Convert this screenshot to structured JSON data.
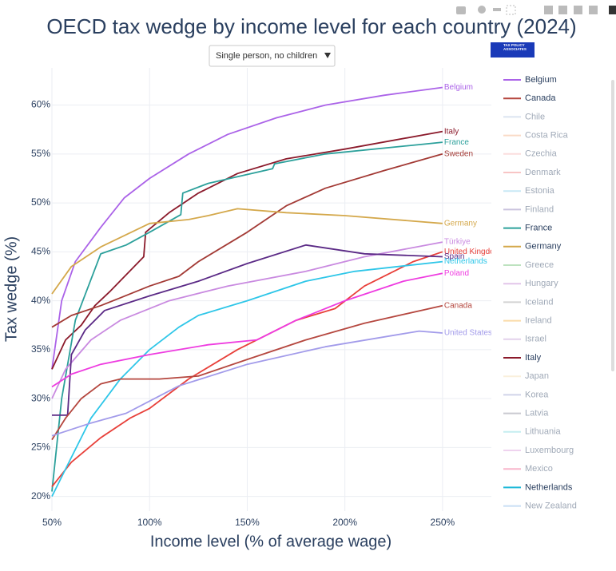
{
  "chart_data": {
    "type": "line",
    "title": "OECD tax wedge by income level for each country (2024)",
    "dropdown": "Single person, no children",
    "logo_text": "TAX POLICY ASSOCIATES",
    "x_label": "Income level (% of average wage)",
    "y_label": "Tax wedge (%)",
    "xlim": [
      50,
      275
    ],
    "ylim": [
      18.5,
      63.8
    ],
    "grid": true,
    "xticks": [
      {
        "value": 50,
        "label": "50%"
      },
      {
        "value": 100,
        "label": "100%"
      },
      {
        "value": 150,
        "label": "150%"
      },
      {
        "value": 200,
        "label": "200%"
      },
      {
        "value": 250,
        "label": "250%"
      }
    ],
    "yticks": [
      {
        "value": 20,
        "label": "20%"
      },
      {
        "value": 25,
        "label": "25%"
      },
      {
        "value": 30,
        "label": "30%"
      },
      {
        "value": 35,
        "label": "35%"
      },
      {
        "value": 40,
        "label": "40%"
      },
      {
        "value": 45,
        "label": "45%"
      },
      {
        "value": 50,
        "label": "50%"
      },
      {
        "value": 55,
        "label": "55%"
      },
      {
        "value": 60,
        "label": "60%"
      }
    ],
    "series": [
      {
        "name": "Belgium",
        "color": "#ab63e8",
        "x": [
          50,
          55,
          62,
          75,
          87,
          100,
          120,
          140,
          165,
          190,
          220,
          250
        ],
        "values": [
          33,
          40,
          44,
          47.5,
          50.5,
          52.5,
          55,
          57,
          58.7,
          60,
          61,
          61.8
        ]
      },
      {
        "name": "Italy",
        "color": "#8b1a2b",
        "x": [
          50,
          57,
          65,
          72,
          80,
          97,
          98,
          110,
          125,
          145,
          170,
          200,
          250
        ],
        "values": [
          33,
          36,
          37.5,
          39.5,
          41,
          44.5,
          47,
          49,
          51,
          53,
          54.5,
          55.5,
          57.3
        ]
      },
      {
        "name": "France",
        "color": "#2ca09b",
        "x": [
          50,
          55,
          62,
          75,
          88,
          100,
          116,
          117,
          130,
          163,
          164,
          190,
          240,
          250
        ],
        "values": [
          20.5,
          30,
          38,
          44.8,
          45.7,
          47,
          48.8,
          51,
          52,
          53.5,
          54,
          55,
          56,
          56.2
        ]
      },
      {
        "name": "Sweden",
        "color": "#a33a35",
        "x": [
          50,
          60,
          75,
          85,
          100,
          115,
          125,
          150,
          170,
          190,
          220,
          250
        ],
        "values": [
          37.3,
          38.5,
          39.5,
          40.3,
          41.5,
          42.5,
          44,
          47,
          49.7,
          51.5,
          53.3,
          55
        ]
      },
      {
        "name": "Germany",
        "color": "#d4a84b",
        "x": [
          50,
          60,
          75,
          100,
          120,
          130,
          145,
          170,
          200,
          250
        ],
        "values": [
          40.7,
          43.5,
          45.5,
          47.9,
          48.3,
          48.7,
          49.4,
          49,
          48.7,
          47.9
        ]
      },
      {
        "name": "Türkiye",
        "color": "#c98ae0",
        "x": [
          50,
          57,
          70,
          85,
          110,
          140,
          180,
          210,
          250
        ],
        "values": [
          30,
          33,
          36,
          38,
          40,
          41.5,
          43,
          44.5,
          46
        ]
      },
      {
        "name": "United Kingdom",
        "color": "#e8403a",
        "x": [
          50,
          60,
          75,
          90,
          100,
          120,
          145,
          175,
          195,
          210,
          235,
          250
        ],
        "values": [
          21,
          23.5,
          26,
          28,
          29,
          32,
          35,
          38,
          39.2,
          41.5,
          44,
          45
        ]
      },
      {
        "name": "Spain",
        "color": "#5b2a86",
        "x": [
          50,
          58,
          60,
          67,
          77,
          100,
          125,
          150,
          180,
          210,
          250
        ],
        "values": [
          28.3,
          28.3,
          34.5,
          37,
          39,
          40.5,
          42,
          43.8,
          45.7,
          44.8,
          44.5
        ]
      },
      {
        "name": "Netherlands",
        "color": "#2ec6e8",
        "x": [
          50,
          60,
          70,
          85,
          100,
          115,
          125,
          150,
          180,
          205,
          250
        ],
        "values": [
          20,
          24,
          28,
          32,
          35,
          37.3,
          38.5,
          40,
          42,
          43,
          44
        ]
      },
      {
        "name": "Poland",
        "color": "#ee3be0",
        "x": [
          50,
          60,
          75,
          100,
          130,
          155,
          175,
          200,
          230,
          250
        ],
        "values": [
          31.2,
          32.5,
          33.5,
          34.5,
          35.5,
          36,
          38,
          40,
          42,
          42.8
        ]
      },
      {
        "name": "Canada",
        "color": "#b5473f",
        "x": [
          50,
          57,
          65,
          75,
          85,
          105,
          125,
          150,
          180,
          210,
          250
        ],
        "values": [
          25.8,
          28,
          30,
          31.5,
          32,
          32,
          32.3,
          34,
          36,
          37.7,
          39.5
        ]
      },
      {
        "name": "United States",
        "color": "#a29bea",
        "x": [
          50,
          70,
          88,
          115,
          150,
          190,
          238,
          250
        ],
        "values": [
          26.2,
          27.5,
          28.5,
          31.3,
          33.5,
          35.3,
          36.9,
          36.7
        ]
      }
    ],
    "legend": [
      {
        "name": "Belgium",
        "color": "#ab63e8",
        "active": true
      },
      {
        "name": "Canada",
        "color": "#b5473f",
        "active": true
      },
      {
        "name": "Chile",
        "color": "#b0c4de",
        "active": false
      },
      {
        "name": "Costa Rica",
        "color": "#f4b183",
        "active": false
      },
      {
        "name": "Czechia",
        "color": "#f8b4b4",
        "active": false
      },
      {
        "name": "Denmark",
        "color": "#f08080",
        "active": false
      },
      {
        "name": "Estonia",
        "color": "#87ceeb",
        "active": false
      },
      {
        "name": "Finland",
        "color": "#8c7bb8",
        "active": false
      },
      {
        "name": "France",
        "color": "#2ca09b",
        "active": true
      },
      {
        "name": "Germany",
        "color": "#d4a84b",
        "active": true
      },
      {
        "name": "Greece",
        "color": "#6fbf73",
        "active": false
      },
      {
        "name": "Hungary",
        "color": "#c080d0",
        "active": false
      },
      {
        "name": "Iceland",
        "color": "#a0a0a0",
        "active": false
      },
      {
        "name": "Ireland",
        "color": "#f5b041",
        "active": false
      },
      {
        "name": "Israel",
        "color": "#c39bd3",
        "active": false
      },
      {
        "name": "Italy",
        "color": "#8b1a2b",
        "active": true
      },
      {
        "name": "Japan",
        "color": "#f5deb3",
        "active": false
      },
      {
        "name": "Korea",
        "color": "#9b9fd0",
        "active": false
      },
      {
        "name": "Latvia",
        "color": "#888899",
        "active": false
      },
      {
        "name": "Lithuania",
        "color": "#7fdbe0",
        "active": false
      },
      {
        "name": "Luxembourg",
        "color": "#dda0dd",
        "active": false
      },
      {
        "name": "Mexico",
        "color": "#f06090",
        "active": false
      },
      {
        "name": "Netherlands",
        "color": "#1cb8d8",
        "active": true
      },
      {
        "name": "New Zealand",
        "color": "#87b8e8",
        "active": false
      }
    ]
  }
}
